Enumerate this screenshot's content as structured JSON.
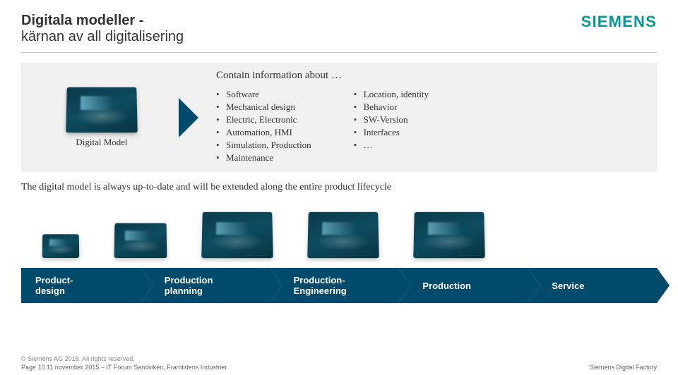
{
  "brand": "SIEMENS",
  "title": {
    "line1": "Digitala modeller -",
    "line2": "kärnan av all digitalisering"
  },
  "info": {
    "model_label": "Digital Model",
    "contain_title": "Contain information about …",
    "col1": [
      "Software",
      "Mechanical design",
      "Electric, Electronic",
      "Automation, HMI",
      "Simulation, Production",
      "Maintenance"
    ],
    "col2": [
      "Location, identity",
      "Behavior",
      "SW-Version",
      "Interfaces",
      "…"
    ]
  },
  "statement": "The digital model is always up-to-date and will be extended along the entire product lifecycle",
  "chevrons": [
    {
      "l1": "Product-",
      "l2": "design"
    },
    {
      "l1": "Production",
      "l2": "planning"
    },
    {
      "l1": "Production-",
      "l2": "Engineering"
    },
    {
      "l1": "Production",
      "l2": ""
    },
    {
      "l1": "Service",
      "l2": ""
    }
  ],
  "footer": {
    "copyright": "© Siemens AG 2015. All rights reserved.",
    "left": "Page 10        11 november 2015 – IT Forum Sandviken, Framtidens Industrier",
    "right": "Siemens Digital Factory"
  },
  "colors": {
    "brand": "#009999",
    "chevron": "#004b6b",
    "panel_bg": "#f0f0f0",
    "cube_gradient_from": "#0a3a4a",
    "cube_gradient_mid": "#0d4c60",
    "cube_gradient_to": "#083440"
  }
}
